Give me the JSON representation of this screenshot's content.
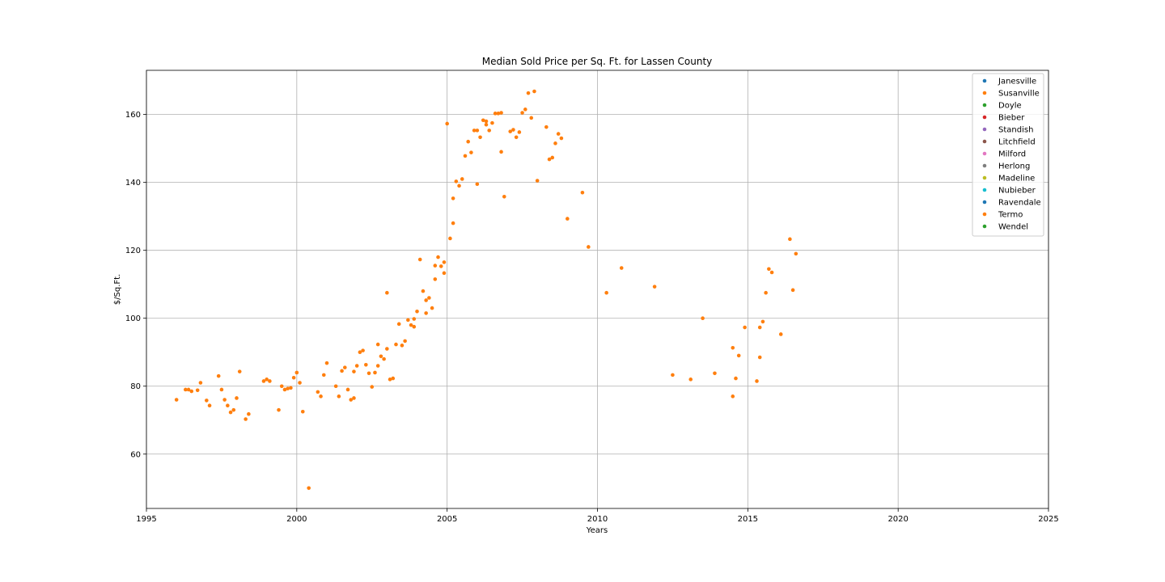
{
  "chart_data": {
    "type": "scatter",
    "title": "Median Sold Price per Sq. Ft. for Lassen County",
    "xlabel": "Years",
    "ylabel": "$/Sq.Ft.",
    "xlim": [
      1995,
      2025
    ],
    "ylim": [
      44,
      173
    ],
    "xticks": [
      1995,
      2000,
      2005,
      2010,
      2015,
      2020,
      2025
    ],
    "yticks": [
      60,
      80,
      100,
      120,
      140,
      160
    ],
    "grid": true,
    "legend_position": "top-right",
    "legend": [
      {
        "name": "Janesville",
        "color": "#1f77b4"
      },
      {
        "name": "Susanville",
        "color": "#ff7f0e"
      },
      {
        "name": "Doyle",
        "color": "#2ca02c"
      },
      {
        "name": "Bieber",
        "color": "#d62728"
      },
      {
        "name": "Standish",
        "color": "#9467bd"
      },
      {
        "name": "Litchfield",
        "color": "#8c564b"
      },
      {
        "name": "Milford",
        "color": "#e377c2"
      },
      {
        "name": "Herlong",
        "color": "#7f7f7f"
      },
      {
        "name": "Madeline",
        "color": "#bcbd22"
      },
      {
        "name": "Nubieber",
        "color": "#17becf"
      },
      {
        "name": "Ravendale",
        "color": "#1f77b4"
      },
      {
        "name": "Termo",
        "color": "#ff7f0e"
      },
      {
        "name": "Wendel",
        "color": "#2ca02c"
      }
    ],
    "series": [
      {
        "name": "Susanville",
        "color": "#ff7f0e",
        "points": [
          [
            1996.0,
            76.0
          ],
          [
            1996.3,
            79.0
          ],
          [
            1996.4,
            79.0
          ],
          [
            1996.5,
            78.5
          ],
          [
            1996.7,
            78.8
          ],
          [
            1996.8,
            81.0
          ],
          [
            1997.0,
            75.8
          ],
          [
            1997.1,
            74.3
          ],
          [
            1997.4,
            83.0
          ],
          [
            1997.5,
            79.0
          ],
          [
            1997.6,
            76.0
          ],
          [
            1997.7,
            74.3
          ],
          [
            1997.8,
            72.3
          ],
          [
            1997.9,
            73.0
          ],
          [
            1998.0,
            76.5
          ],
          [
            1998.1,
            84.3
          ],
          [
            1998.3,
            70.3
          ],
          [
            1998.4,
            71.8
          ],
          [
            1998.9,
            81.5
          ],
          [
            1999.0,
            82.0
          ],
          [
            1999.1,
            81.5
          ],
          [
            1999.4,
            73.0
          ],
          [
            1999.5,
            80.0
          ],
          [
            1999.6,
            79.0
          ],
          [
            1999.7,
            79.3
          ],
          [
            1999.8,
            79.5
          ],
          [
            1999.9,
            82.5
          ],
          [
            2000.0,
            84.0
          ],
          [
            2000.1,
            81.0
          ],
          [
            2000.2,
            72.5
          ],
          [
            2000.4,
            50.0
          ],
          [
            2000.7,
            78.3
          ],
          [
            2000.8,
            77.0
          ],
          [
            2000.9,
            83.3
          ],
          [
            2001.0,
            86.8
          ],
          [
            2001.3,
            80.0
          ],
          [
            2001.4,
            77.0
          ],
          [
            2001.5,
            84.5
          ],
          [
            2001.6,
            85.5
          ],
          [
            2001.7,
            79.0
          ],
          [
            2001.8,
            76.0
          ],
          [
            2001.9,
            76.5
          ],
          [
            2001.9,
            84.3
          ],
          [
            2002.0,
            86.0
          ],
          [
            2002.1,
            90.0
          ],
          [
            2002.2,
            90.5
          ],
          [
            2002.3,
            86.3
          ],
          [
            2002.4,
            83.8
          ],
          [
            2002.5,
            79.8
          ],
          [
            2002.6,
            84.0
          ],
          [
            2002.7,
            86.0
          ],
          [
            2002.7,
            92.3
          ],
          [
            2002.8,
            88.8
          ],
          [
            2002.9,
            88.0
          ],
          [
            2003.0,
            91.0
          ],
          [
            2003.0,
            107.5
          ],
          [
            2003.1,
            82.0
          ],
          [
            2003.2,
            82.3
          ],
          [
            2003.3,
            92.3
          ],
          [
            2003.4,
            98.3
          ],
          [
            2003.5,
            92.0
          ],
          [
            2003.6,
            93.3
          ],
          [
            2003.7,
            99.5
          ],
          [
            2003.8,
            98.0
          ],
          [
            2003.9,
            99.8
          ],
          [
            2003.9,
            97.5
          ],
          [
            2004.0,
            102.0
          ],
          [
            2004.1,
            117.3
          ],
          [
            2004.2,
            108.0
          ],
          [
            2004.3,
            101.5
          ],
          [
            2004.3,
            105.3
          ],
          [
            2004.4,
            106.0
          ],
          [
            2004.5,
            103.0
          ],
          [
            2004.6,
            111.5
          ],
          [
            2004.6,
            115.5
          ],
          [
            2004.7,
            118.0
          ],
          [
            2004.8,
            115.3
          ],
          [
            2004.9,
            116.5
          ],
          [
            2004.9,
            113.3
          ],
          [
            2005.0,
            157.3
          ],
          [
            2005.1,
            123.5
          ],
          [
            2005.2,
            128.0
          ],
          [
            2005.2,
            135.3
          ],
          [
            2005.3,
            140.3
          ],
          [
            2005.4,
            139.0
          ],
          [
            2005.5,
            141.0
          ],
          [
            2005.6,
            147.8
          ],
          [
            2005.7,
            152.0
          ],
          [
            2005.8,
            148.8
          ],
          [
            2005.9,
            155.3
          ],
          [
            2006.0,
            155.3
          ],
          [
            2006.0,
            139.5
          ],
          [
            2006.1,
            153.3
          ],
          [
            2006.2,
            158.3
          ],
          [
            2006.3,
            158.0
          ],
          [
            2006.3,
            157.0
          ],
          [
            2006.4,
            155.3
          ],
          [
            2006.5,
            157.5
          ],
          [
            2006.6,
            160.3
          ],
          [
            2006.7,
            160.3
          ],
          [
            2006.8,
            160.5
          ],
          [
            2006.8,
            149.0
          ],
          [
            2006.9,
            135.8
          ],
          [
            2007.1,
            155.0
          ],
          [
            2007.2,
            155.5
          ],
          [
            2007.3,
            153.3
          ],
          [
            2007.4,
            154.8
          ],
          [
            2007.5,
            160.5
          ],
          [
            2007.6,
            161.5
          ],
          [
            2007.7,
            166.3
          ],
          [
            2007.8,
            159.0
          ],
          [
            2007.9,
            166.8
          ],
          [
            2008.0,
            140.5
          ],
          [
            2008.3,
            156.3
          ],
          [
            2008.4,
            146.8
          ],
          [
            2008.5,
            147.3
          ],
          [
            2008.6,
            151.5
          ],
          [
            2008.7,
            154.3
          ],
          [
            2008.8,
            153.0
          ],
          [
            2009.0,
            129.3
          ],
          [
            2009.5,
            137.0
          ],
          [
            2009.7,
            121.0
          ],
          [
            2010.3,
            107.5
          ],
          [
            2010.8,
            114.8
          ],
          [
            2011.9,
            109.3
          ],
          [
            2012.5,
            83.3
          ],
          [
            2013.1,
            82.0
          ],
          [
            2013.5,
            100.0
          ],
          [
            2013.9,
            83.8
          ],
          [
            2014.5,
            91.3
          ],
          [
            2014.5,
            77.0
          ],
          [
            2014.6,
            82.3
          ],
          [
            2014.7,
            89.0
          ],
          [
            2014.9,
            97.3
          ],
          [
            2015.3,
            81.5
          ],
          [
            2015.4,
            88.5
          ],
          [
            2015.4,
            97.3
          ],
          [
            2015.5,
            99.0
          ],
          [
            2015.6,
            107.5
          ],
          [
            2015.7,
            114.5
          ],
          [
            2015.8,
            113.5
          ],
          [
            2016.1,
            95.3
          ],
          [
            2016.4,
            123.3
          ],
          [
            2016.5,
            108.3
          ],
          [
            2016.6,
            119.0
          ]
        ]
      }
    ]
  }
}
